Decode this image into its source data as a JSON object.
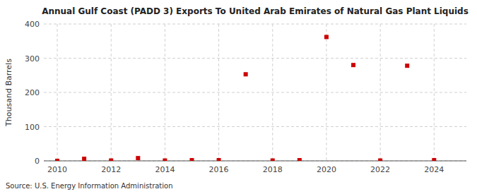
{
  "chart_data": {
    "type": "scatter",
    "title": "Annual Gulf Coast (PADD 3) Exports To United Arab Emirates of Natural Gas Plant Liquids",
    "ylabel": "Thousand Barrels",
    "source": "Source: U.S. Energy Information Administration",
    "x": [
      2010,
      2011,
      2012,
      2013,
      2014,
      2015,
      2016,
      2017,
      2018,
      2019,
      2020,
      2021,
      2022,
      2023,
      2024
    ],
    "values": [
      0,
      6,
      1,
      8,
      1,
      2,
      2,
      253,
      1,
      2,
      362,
      280,
      1,
      278,
      2
    ],
    "color": "#cc0000",
    "marker": "square",
    "xlim": [
      2009.5,
      2025.2
    ],
    "ylim": [
      0,
      400
    ],
    "xticks": [
      2010,
      2012,
      2014,
      2016,
      2018,
      2020,
      2022,
      2024
    ],
    "yticks": [
      0,
      100,
      200,
      300,
      400
    ],
    "grid": true
  }
}
